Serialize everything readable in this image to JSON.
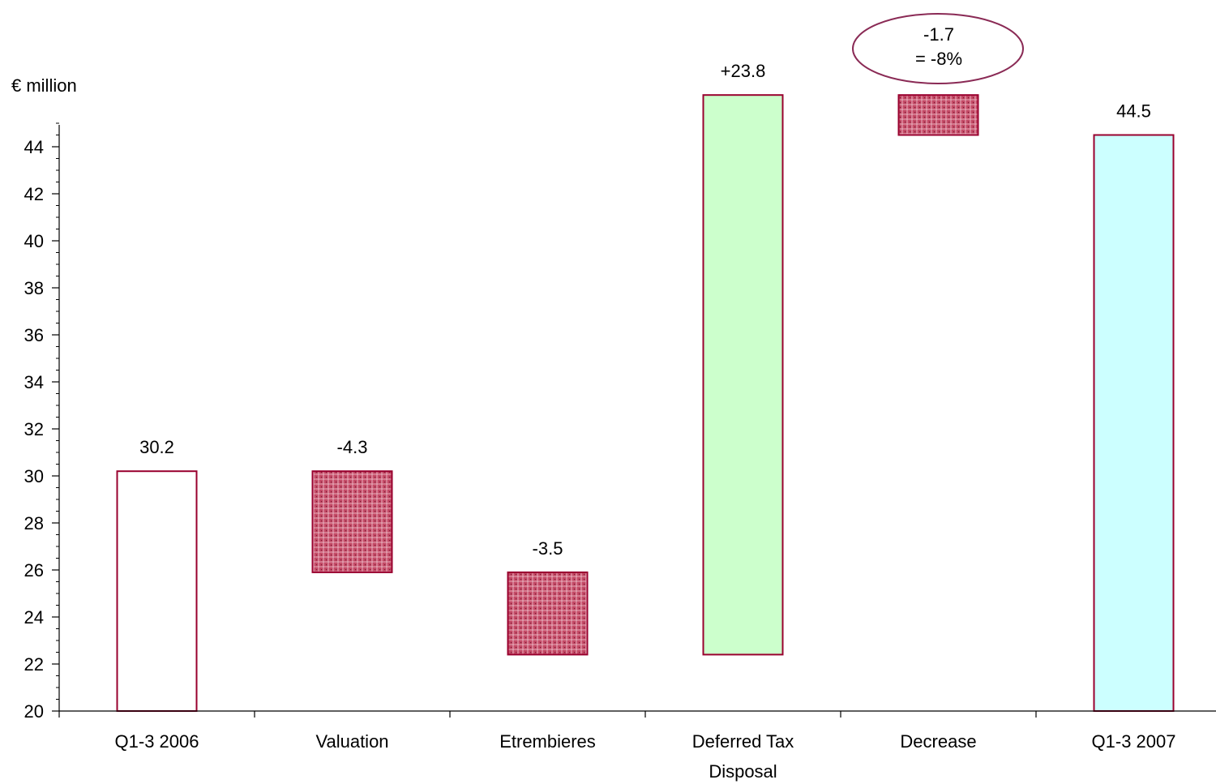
{
  "chart_data": {
    "type": "bar",
    "subtype": "waterfall",
    "ylabel": "€ million",
    "ylim": [
      20,
      45
    ],
    "yticks": [
      "20",
      "22",
      "24",
      "26",
      "28",
      "30",
      "32",
      "34",
      "36",
      "38",
      "40",
      "42",
      "44"
    ],
    "grid": false,
    "categories": [
      {
        "label": "Q1-3 2006",
        "line2": ""
      },
      {
        "label": "Valuation",
        "line2": ""
      },
      {
        "label": "Etrembieres",
        "line2": ""
      },
      {
        "label": "Deferred Tax",
        "line2": "Disposal"
      },
      {
        "label": "Decrease",
        "line2": ""
      },
      {
        "label": "Q1-3 2007",
        "line2": ""
      }
    ],
    "bars": [
      {
        "start": 20,
        "end": 30.2,
        "value_label": "30.2",
        "kind": "total",
        "fill": "#ffffff"
      },
      {
        "start": 30.2,
        "end": 25.9,
        "value_label": "-4.3",
        "kind": "decrease",
        "fill": "#c74a66"
      },
      {
        "start": 25.9,
        "end": 22.4,
        "value_label": "-3.5",
        "kind": "decrease",
        "fill": "#c74a66"
      },
      {
        "start": 22.4,
        "end": 46.2,
        "value_label": "+23.8",
        "kind": "increase",
        "fill": "#ccffcc"
      },
      {
        "start": 46.2,
        "end": 44.5,
        "value_label": "-1.7",
        "kind": "decrease",
        "fill": "#c74a66"
      },
      {
        "start": 20,
        "end": 44.5,
        "value_label": "44.5",
        "kind": "total",
        "fill": "#ccffff"
      }
    ],
    "annotation": {
      "line1": "-1.7",
      "line2": "= -8%",
      "target_category": "Decrease",
      "shape": "ellipse"
    },
    "colors": {
      "border": "#99002e",
      "axis": "#000000",
      "annotation_outline": "#8a2a55",
      "hatch": "#c74a66"
    }
  }
}
